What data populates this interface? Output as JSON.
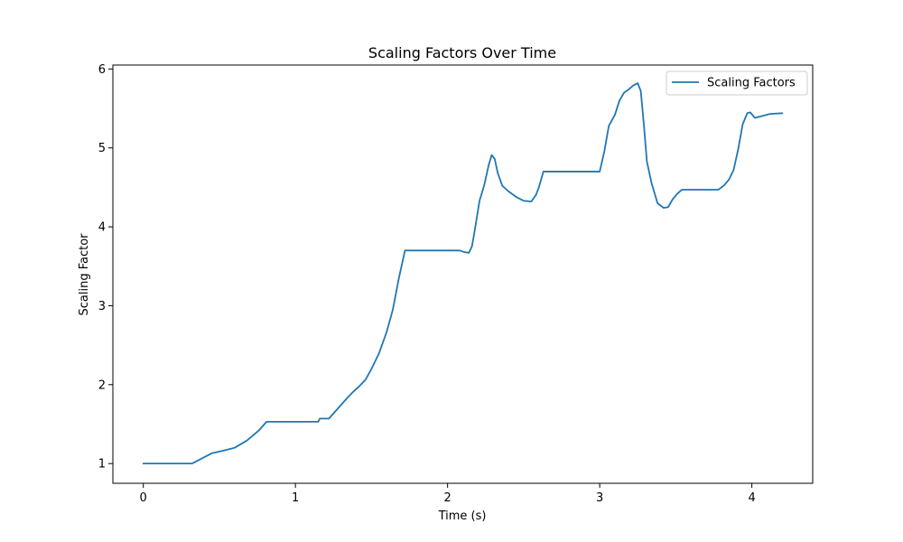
{
  "chart_data": {
    "type": "line",
    "title": "Scaling Factors Over Time",
    "xlabel": "Time (s)",
    "ylabel": "Scaling Factor",
    "xlim": [
      -0.2,
      4.4
    ],
    "ylim": [
      0.75,
      6.05
    ],
    "xticks": [
      0,
      1,
      2,
      3,
      4
    ],
    "yticks": [
      1,
      2,
      3,
      4,
      5,
      6
    ],
    "grid": false,
    "legend_position": "top-right",
    "series": [
      {
        "name": "Scaling Factors",
        "color": "#1f77b4",
        "x": [
          0,
          0.32,
          0.38,
          0.45,
          0.52,
          0.6,
          0.68,
          0.76,
          0.81,
          1.0,
          1.15,
          1.16,
          1.22,
          1.28,
          1.34,
          1.38,
          1.42,
          1.46,
          1.5,
          1.55,
          1.6,
          1.64,
          1.68,
          1.72,
          1.8,
          1.9,
          2.0,
          2.08,
          2.11,
          2.14,
          2.16,
          2.18,
          2.21,
          2.24,
          2.27,
          2.29,
          2.31,
          2.33,
          2.36,
          2.4,
          2.45,
          2.5,
          2.55,
          2.58,
          2.6,
          2.63,
          2.8,
          3.0,
          3.03,
          3.06,
          3.1,
          3.13,
          3.16,
          3.19,
          3.22,
          3.25,
          3.27,
          3.29,
          3.31,
          3.34,
          3.38,
          3.42,
          3.45,
          3.48,
          3.51,
          3.54,
          3.57,
          3.7,
          3.78,
          3.82,
          3.85,
          3.88,
          3.91,
          3.94,
          3.97,
          3.99,
          4.02,
          4.06,
          4.12,
          4.2
        ],
        "y": [
          1.0,
          1.0,
          1.06,
          1.13,
          1.16,
          1.2,
          1.29,
          1.42,
          1.53,
          1.53,
          1.53,
          1.57,
          1.57,
          1.7,
          1.83,
          1.91,
          1.98,
          2.06,
          2.2,
          2.4,
          2.67,
          2.95,
          3.35,
          3.7,
          3.7,
          3.7,
          3.7,
          3.7,
          3.68,
          3.67,
          3.75,
          3.97,
          4.33,
          4.52,
          4.78,
          4.91,
          4.86,
          4.68,
          4.52,
          4.45,
          4.38,
          4.33,
          4.32,
          4.4,
          4.5,
          4.7,
          4.7,
          4.7,
          4.95,
          5.28,
          5.42,
          5.6,
          5.7,
          5.74,
          5.79,
          5.82,
          5.72,
          5.3,
          4.83,
          4.56,
          4.3,
          4.24,
          4.25,
          4.35,
          4.42,
          4.47,
          4.47,
          4.47,
          4.47,
          4.53,
          4.6,
          4.72,
          4.98,
          5.3,
          5.44,
          5.45,
          5.38,
          5.4,
          5.43,
          5.44
        ]
      }
    ]
  }
}
